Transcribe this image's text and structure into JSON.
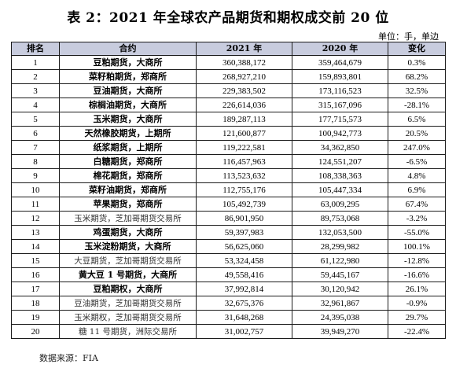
{
  "title": "表 2：2021 年全球农产品期货和期权成交前 20 位",
  "unit": "单位：手，单边",
  "columns": [
    "排名",
    "合约",
    "2021 年",
    "2020 年",
    "变化"
  ],
  "rows": [
    {
      "rank": "1",
      "contract": "豆粕期货，大商所",
      "y2021": "360,388,172",
      "y2020": "359,464,679",
      "change": "0.3%",
      "bold": true
    },
    {
      "rank": "2",
      "contract": "菜籽粕期货，郑商所",
      "y2021": "268,927,210",
      "y2020": "159,893,801",
      "change": "68.2%",
      "bold": true
    },
    {
      "rank": "3",
      "contract": "豆油期货，大商所",
      "y2021": "229,383,502",
      "y2020": "173,116,523",
      "change": "32.5%",
      "bold": true
    },
    {
      "rank": "4",
      "contract": "棕榈油期货，大商所",
      "y2021": "226,614,036",
      "y2020": "315,167,096",
      "change": "-28.1%",
      "bold": true
    },
    {
      "rank": "5",
      "contract": "玉米期货，大商所",
      "y2021": "189,287,113",
      "y2020": "177,715,573",
      "change": "6.5%",
      "bold": true
    },
    {
      "rank": "6",
      "contract": "天然橡胶期货，上期所",
      "y2021": "121,600,877",
      "y2020": "100,942,773",
      "change": "20.5%",
      "bold": true
    },
    {
      "rank": "7",
      "contract": "纸浆期货，上期所",
      "y2021": "119,222,581",
      "y2020": "34,362,850",
      "change": "247.0%",
      "bold": true
    },
    {
      "rank": "8",
      "contract": "白糖期货，郑商所",
      "y2021": "116,457,963",
      "y2020": "124,551,207",
      "change": "-6.5%",
      "bold": true
    },
    {
      "rank": "9",
      "contract": "棉花期货，郑商所",
      "y2021": "113,523,632",
      "y2020": "108,338,363",
      "change": "4.8%",
      "bold": true
    },
    {
      "rank": "10",
      "contract": "菜籽油期货，郑商所",
      "y2021": "112,755,176",
      "y2020": "105,447,334",
      "change": "6.9%",
      "bold": true
    },
    {
      "rank": "11",
      "contract": "苹果期货，郑商所",
      "y2021": "105,492,739",
      "y2020": "63,009,295",
      "change": "67.4%",
      "bold": true
    },
    {
      "rank": "12",
      "contract": "玉米期货，芝加哥期货交易所",
      "y2021": "86,901,950",
      "y2020": "89,753,068",
      "change": "-3.2%",
      "bold": false
    },
    {
      "rank": "13",
      "contract": "鸡蛋期货，大商所",
      "y2021": "59,397,983",
      "y2020": "132,053,500",
      "change": "-55.0%",
      "bold": true
    },
    {
      "rank": "14",
      "contract": "玉米淀粉期货，大商所",
      "y2021": "56,625,060",
      "y2020": "28,299,982",
      "change": "100.1%",
      "bold": true
    },
    {
      "rank": "15",
      "contract": "大豆期货，芝加哥期货交易所",
      "y2021": "53,324,458",
      "y2020": "61,122,980",
      "change": "-12.8%",
      "bold": false
    },
    {
      "rank": "16",
      "contract": "黄大豆 1 号期货，大商所",
      "y2021": "49,558,416",
      "y2020": "59,445,167",
      "change": "-16.6%",
      "bold": true
    },
    {
      "rank": "17",
      "contract": "豆粕期权，大商所",
      "y2021": "37,992,814",
      "y2020": "30,120,942",
      "change": "26.1%",
      "bold": true
    },
    {
      "rank": "18",
      "contract": "豆油期货，芝加哥期货交易所",
      "y2021": "32,675,376",
      "y2020": "32,961,867",
      "change": "-0.9%",
      "bold": false
    },
    {
      "rank": "19",
      "contract": "玉米期权，芝加哥期货交易所",
      "y2021": "31,648,268",
      "y2020": "24,395,038",
      "change": "29.7%",
      "bold": false
    },
    {
      "rank": "20",
      "contract": "糖 11 号期货，洲际交易所",
      "y2021": "31,002,757",
      "y2020": "39,949,270",
      "change": "-22.4%",
      "bold": false
    }
  ],
  "source": "数据来源：FIA",
  "colors": {
    "header_bg": "#c8ccde",
    "border": "#1c1c1c"
  }
}
